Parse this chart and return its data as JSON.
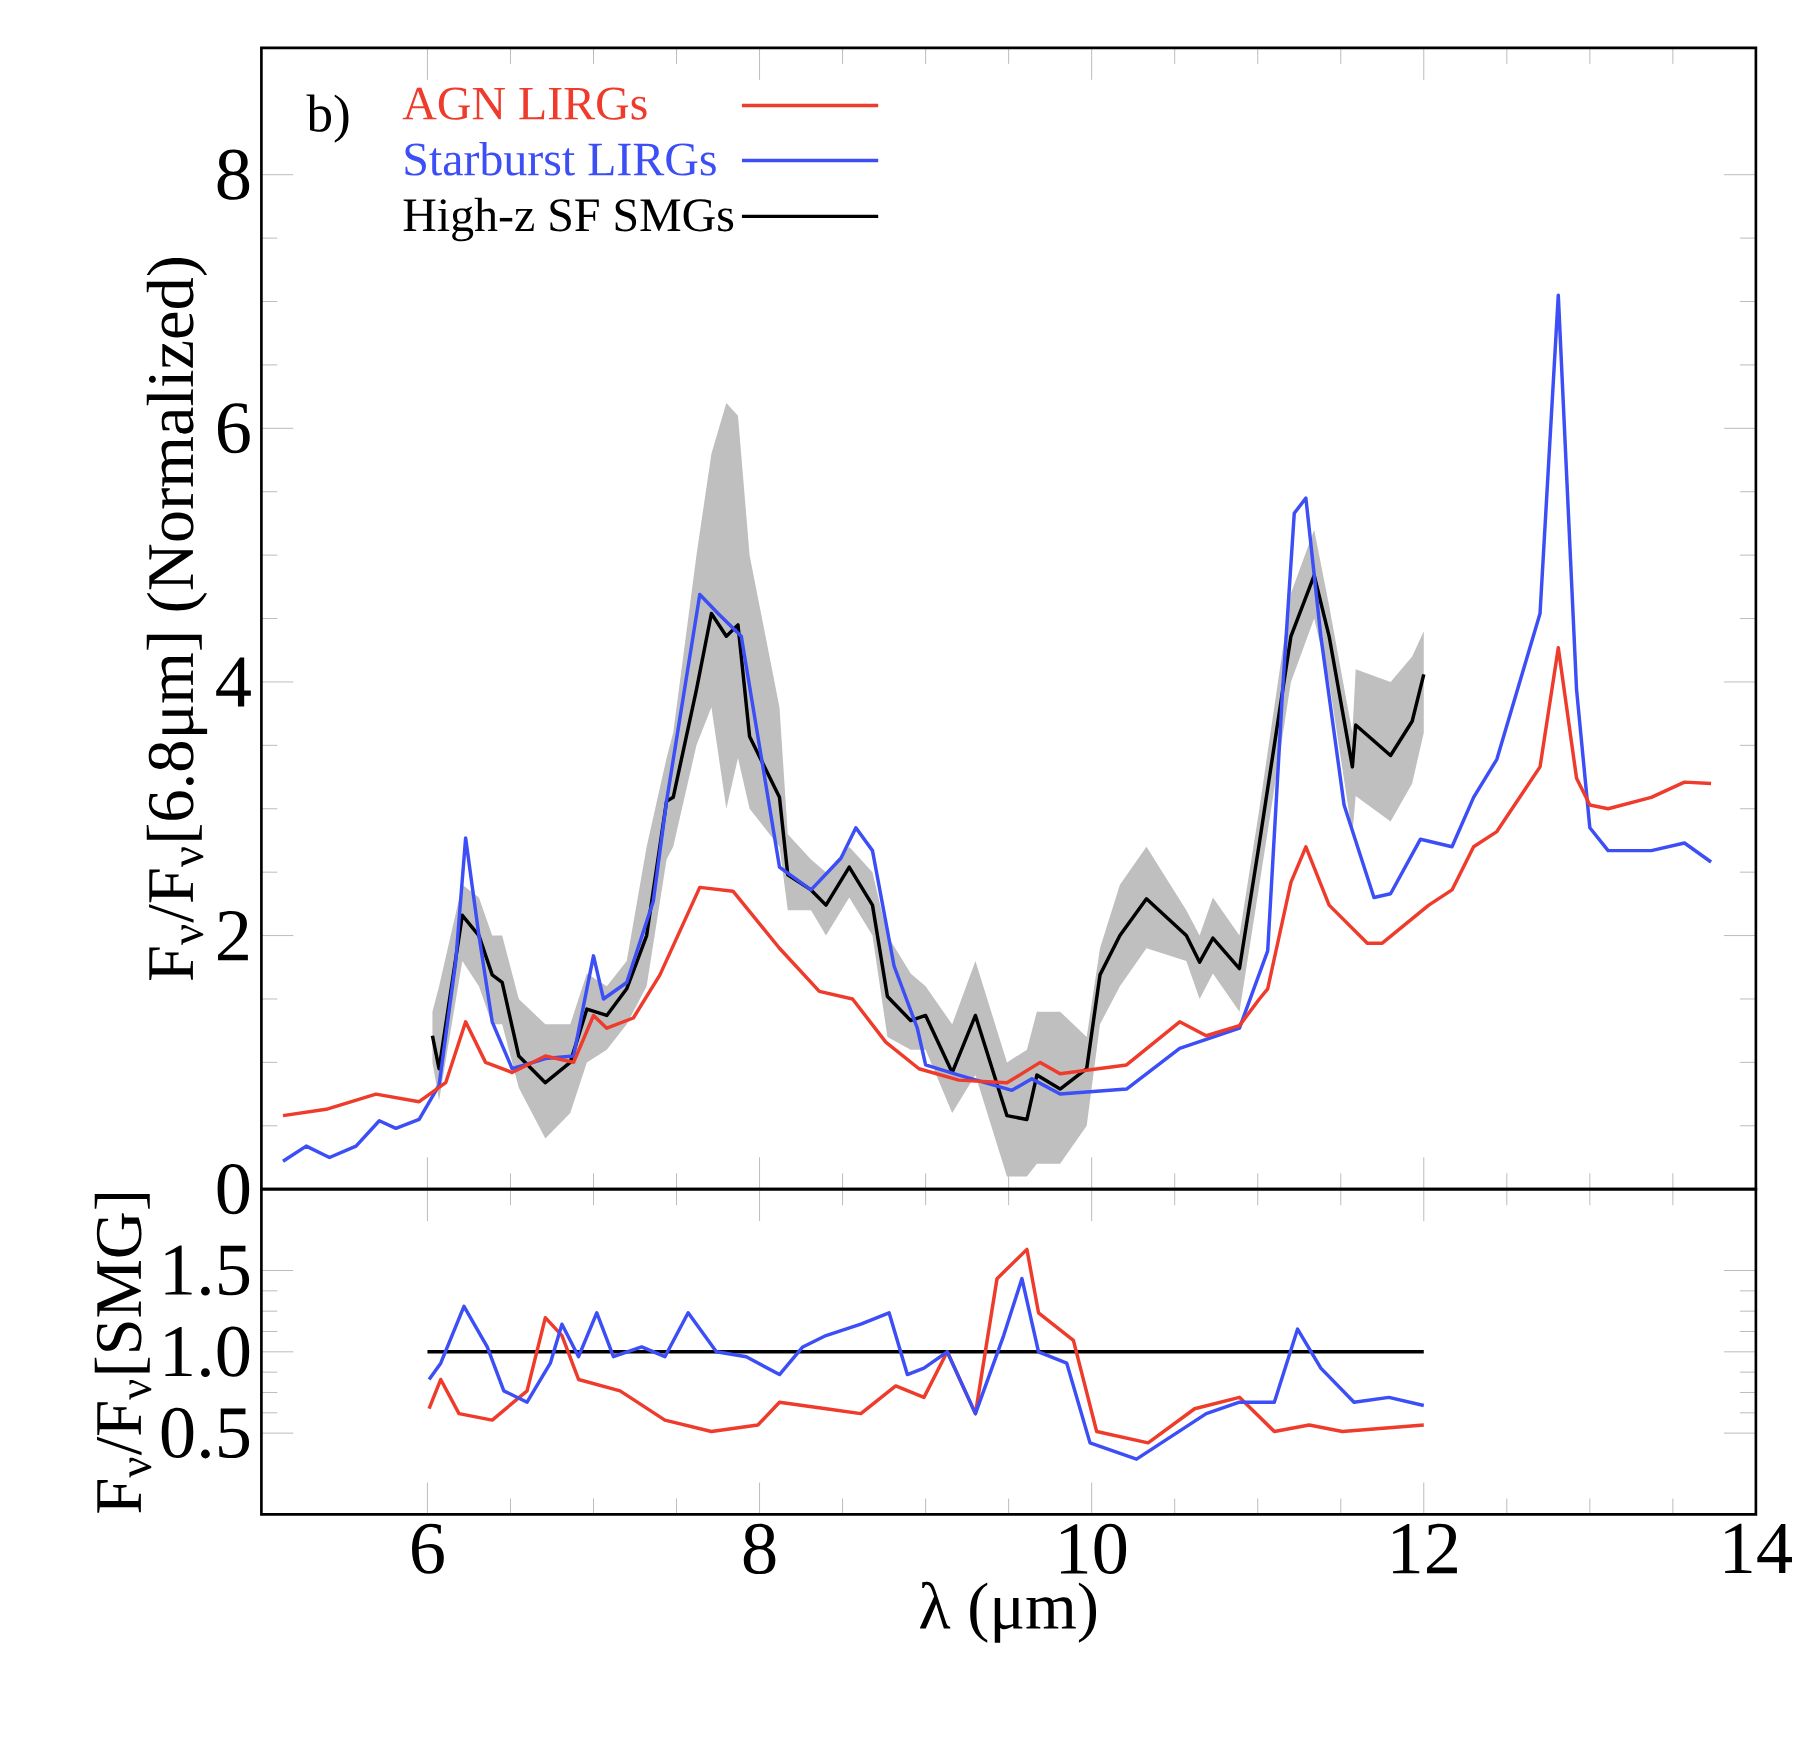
{
  "chart_data": [
    {
      "type": "line",
      "ylabel": "F$_{ν}$/F$_{ν}$[6.8μm] (Normalized)",
      "annotations": [
        "b)"
      ],
      "legend": "top left",
      "tick_labels": "y",
      "xlim": [
        5,
        14
      ],
      "xticks": [
        6,
        8,
        10,
        12,
        14
      ],
      "ylim": [
        0,
        9
      ],
      "yticks": [
        0,
        2,
        4,
        6,
        8
      ],
      "series": [
        {
          "name": "AGN LIRGs",
          "color": "#ee3b2b",
          "x": [
            5.13,
            5.39,
            5.69,
            5.95,
            6.11,
            6.23,
            6.35,
            6.51,
            6.71,
            6.88,
            7.0,
            7.08,
            7.24,
            7.4,
            7.64,
            7.84,
            8.12,
            8.36,
            8.56,
            8.76,
            8.96,
            9.2,
            9.49,
            9.69,
            9.81,
            10.21,
            10.53,
            10.69,
            10.89,
            11.01,
            11.06,
            11.2,
            11.29,
            11.43,
            11.66,
            11.75,
            12.03,
            12.17,
            12.3,
            12.44,
            12.7,
            12.81,
            12.92,
            13.0,
            13.11,
            13.37,
            13.57,
            13.73
          ],
          "values": [
            0.58,
            0.63,
            0.75,
            0.69,
            0.84,
            1.32,
            1.0,
            0.92,
            1.05,
            1.0,
            1.37,
            1.27,
            1.35,
            1.69,
            2.38,
            2.35,
            1.9,
            1.56,
            1.5,
            1.16,
            0.95,
            0.86,
            0.84,
            1.0,
            0.91,
            0.98,
            1.32,
            1.21,
            1.29,
            1.5,
            1.58,
            2.42,
            2.7,
            2.24,
            1.94,
            1.94,
            2.24,
            2.36,
            2.7,
            2.82,
            3.33,
            4.27,
            3.24,
            3.03,
            3.0,
            3.09,
            3.21,
            3.2
          ]
        },
        {
          "name": "Starburst LIRGs",
          "color": "#3c4ef5",
          "x": [
            5.13,
            5.27,
            5.41,
            5.57,
            5.71,
            5.81,
            5.95,
            6.07,
            6.17,
            6.23,
            6.31,
            6.39,
            6.51,
            6.71,
            6.88,
            6.96,
            7.0,
            7.06,
            7.2,
            7.36,
            7.44,
            7.64,
            7.75,
            7.89,
            8.12,
            8.31,
            8.49,
            8.58,
            8.68,
            8.81,
            8.95,
            9.0,
            9.2,
            9.52,
            9.64,
            9.81,
            10.21,
            10.53,
            10.89,
            11.06,
            11.15,
            11.22,
            11.29,
            11.38,
            11.52,
            11.7,
            11.8,
            11.98,
            12.17,
            12.3,
            12.44,
            12.7,
            12.81,
            12.92,
            13.0,
            13.11,
            13.37,
            13.57,
            13.73
          ],
          "values": [
            0.22,
            0.34,
            0.25,
            0.34,
            0.54,
            0.48,
            0.55,
            0.82,
            1.79,
            2.77,
            2.0,
            1.32,
            0.95,
            1.03,
            1.05,
            1.58,
            1.84,
            1.5,
            1.63,
            2.27,
            3.06,
            4.69,
            4.54,
            4.36,
            2.54,
            2.36,
            2.61,
            2.85,
            2.67,
            1.76,
            1.27,
            0.98,
            0.9,
            0.78,
            0.87,
            0.75,
            0.79,
            1.11,
            1.27,
            1.88,
            3.94,
            5.33,
            5.45,
            4.36,
            3.03,
            2.3,
            2.33,
            2.76,
            2.7,
            3.09,
            3.39,
            4.54,
            7.05,
            3.94,
            2.85,
            2.67,
            2.67,
            2.73,
            2.58
          ]
        },
        {
          "name": "High-z SF SMGs",
          "color": "#000000",
          "x": [
            6.03,
            6.07,
            6.21,
            6.31,
            6.39,
            6.45,
            6.55,
            6.71,
            6.86,
            6.96,
            7.08,
            7.2,
            7.32,
            7.44,
            7.48,
            7.62,
            7.71,
            7.8,
            7.87,
            7.94,
            8.12,
            8.17,
            8.31,
            8.4,
            8.54,
            8.68,
            8.77,
            8.91,
            9.0,
            9.16,
            9.3,
            9.49,
            9.61,
            9.67,
            9.81,
            9.97,
            10.05,
            10.17,
            10.33,
            10.57,
            10.65,
            10.73,
            10.89,
            11.01,
            11.2,
            11.34,
            11.43,
            11.57,
            11.59,
            11.8,
            11.93,
            12.0
          ],
          "values": [
            1.21,
            0.95,
            2.16,
            2.0,
            1.69,
            1.63,
            1.05,
            0.84,
            1.0,
            1.42,
            1.37,
            1.58,
            2.0,
            3.06,
            3.09,
            3.94,
            4.54,
            4.36,
            4.45,
            3.57,
            3.09,
            2.48,
            2.36,
            2.24,
            2.54,
            2.24,
            1.52,
            1.33,
            1.37,
            0.92,
            1.37,
            0.58,
            0.55,
            0.9,
            0.79,
            0.95,
            1.69,
            2.0,
            2.29,
            2.0,
            1.79,
            1.98,
            1.74,
            2.73,
            4.36,
            4.84,
            4.36,
            3.33,
            3.66,
            3.42,
            3.69,
            4.06
          ],
          "lower": [
            1.0,
            0.7,
            1.8,
            1.6,
            1.3,
            1.3,
            0.8,
            0.4,
            0.6,
            1.0,
            1.1,
            1.3,
            1.6,
            2.6,
            2.7,
            3.5,
            3.8,
            3.0,
            3.4,
            3.0,
            2.7,
            2.2,
            2.2,
            2.0,
            2.3,
            2.0,
            1.2,
            1.1,
            1.1,
            0.6,
            0.9,
            0.1,
            0.1,
            0.2,
            0.2,
            0.5,
            1.3,
            1.6,
            1.9,
            1.8,
            1.5,
            1.7,
            1.4,
            2.4,
            4.0,
            4.5,
            4.0,
            2.8,
            3.1,
            2.9,
            3.2,
            3.6
          ],
          "upper": [
            1.4,
            1.6,
            2.4,
            2.3,
            2.0,
            2.0,
            1.5,
            1.3,
            1.3,
            1.7,
            1.6,
            1.8,
            2.7,
            3.4,
            3.6,
            5.0,
            5.8,
            6.2,
            6.1,
            5.0,
            3.8,
            2.8,
            2.6,
            2.5,
            2.7,
            2.5,
            2.0,
            1.7,
            1.6,
            1.3,
            1.8,
            1.0,
            1.1,
            1.4,
            1.4,
            1.2,
            1.9,
            2.4,
            2.7,
            2.2,
            2.0,
            2.3,
            2.0,
            3.0,
            4.7,
            5.2,
            4.6,
            3.6,
            4.1,
            4.0,
            4.2,
            4.4
          ]
        }
      ]
    },
    {
      "type": "line",
      "xlabel": "λ (μm)",
      "ylabel": "F$_{ν}$/F$_{ν}$[SMG]",
      "xlim": [
        5,
        14
      ],
      "xticks": [
        6,
        8,
        10,
        12,
        14
      ],
      "ylim": [
        0,
        2
      ],
      "yticks": [
        0.5,
        {
          "value": 1.0,
          "label": "1.0"
        },
        1.5
      ],
      "series": [
        {
          "color": "#3c4ef5",
          "x": [
            6.01,
            6.08,
            6.22,
            6.36,
            6.46,
            6.6,
            6.74,
            6.81,
            6.91,
            7.02,
            7.12,
            7.29,
            7.43,
            7.57,
            7.74,
            7.92,
            8.12,
            8.26,
            8.4,
            8.61,
            8.78,
            8.89,
            8.99,
            9.13,
            9.3,
            9.47,
            9.58,
            9.68,
            9.85,
            9.99,
            10.27,
            10.48,
            10.69,
            10.89,
            11.1,
            11.24,
            11.38,
            11.58,
            11.79,
            12.0
          ],
          "values": [
            0.83,
            0.93,
            1.28,
            1.03,
            0.76,
            0.69,
            0.93,
            1.17,
            0.97,
            1.24,
            0.97,
            1.03,
            0.97,
            1.24,
            1.0,
            0.97,
            0.86,
            1.03,
            1.1,
            1.17,
            1.24,
            0.86,
            0.9,
            1.0,
            0.62,
            1.1,
            1.45,
            1.0,
            0.93,
            0.44,
            0.34,
            0.48,
            0.62,
            0.69,
            0.69,
            1.14,
            0.9,
            0.69,
            0.72,
            0.67
          ]
        },
        {
          "color": "#ee3b2b",
          "x": [
            6.01,
            6.08,
            6.19,
            6.39,
            6.6,
            6.71,
            6.81,
            6.91,
            7.16,
            7.43,
            7.71,
            7.99,
            8.12,
            8.4,
            8.61,
            8.82,
            8.99,
            9.13,
            9.3,
            9.43,
            9.61,
            9.68,
            9.89,
            10.03,
            10.34,
            10.62,
            10.89,
            11.1,
            11.31,
            11.51,
            12.0
          ],
          "values": [
            0.65,
            0.83,
            0.62,
            0.58,
            0.76,
            1.21,
            1.1,
            0.83,
            0.76,
            0.58,
            0.51,
            0.55,
            0.69,
            0.65,
            0.62,
            0.79,
            0.72,
            1.0,
            0.62,
            1.45,
            1.63,
            1.24,
            1.07,
            0.51,
            0.44,
            0.65,
            0.72,
            0.51,
            0.55,
            0.51,
            0.55
          ]
        },
        {
          "color": "#000000",
          "x": [
            6.0,
            12.0
          ],
          "values": [
            1.0,
            1.0
          ]
        }
      ]
    }
  ]
}
